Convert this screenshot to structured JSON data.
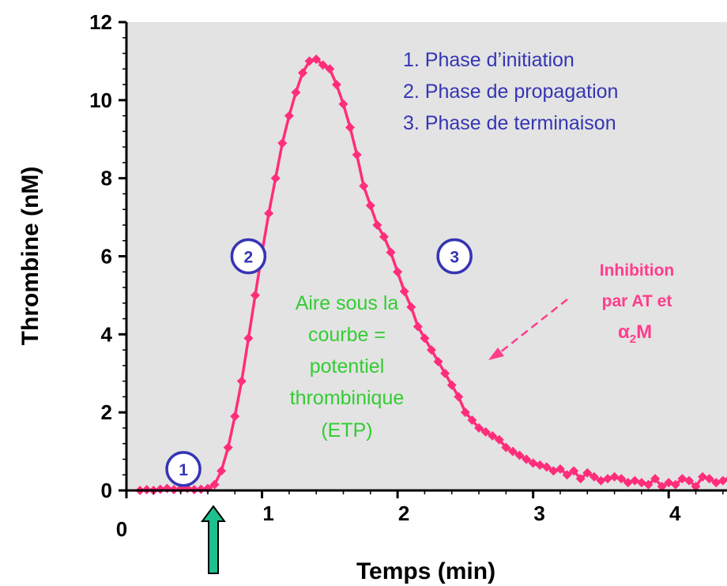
{
  "chart_data": {
    "type": "line",
    "xlabel": "Temps (min)",
    "ylabel": "Thrombine (nM)",
    "xlim": [
      0,
      4.5
    ],
    "ylim": [
      0,
      12
    ],
    "x_ticks": [
      0,
      1,
      2,
      3,
      4
    ],
    "y_ticks": [
      0,
      2,
      4,
      6,
      8,
      10,
      12
    ],
    "grid": false,
    "background": "#e3e3e3",
    "series": [
      {
        "color": "#ff2d7a",
        "marker": "diamond",
        "x": [
          0.1,
          0.15,
          0.2,
          0.25,
          0.3,
          0.35,
          0.4,
          0.45,
          0.5,
          0.55,
          0.6,
          0.65,
          0.7,
          0.75,
          0.8,
          0.85,
          0.9,
          0.95,
          1.0,
          1.05,
          1.1,
          1.15,
          1.2,
          1.25,
          1.3,
          1.35,
          1.4,
          1.45,
          1.5,
          1.55,
          1.6,
          1.65,
          1.7,
          1.75,
          1.8,
          1.85,
          1.9,
          1.95,
          2.0,
          2.05,
          2.1,
          2.15,
          2.2,
          2.25,
          2.3,
          2.35,
          2.4,
          2.45,
          2.5,
          2.55,
          2.6,
          2.65,
          2.7,
          2.75,
          2.8,
          2.85,
          2.9,
          2.95,
          3.0,
          3.05,
          3.1,
          3.15,
          3.2,
          3.25,
          3.3,
          3.35,
          3.4,
          3.45,
          3.5,
          3.55,
          3.6,
          3.65,
          3.7,
          3.75,
          3.8,
          3.85,
          3.9,
          3.95,
          4.0,
          4.05,
          4.1,
          4.15,
          4.2,
          4.25,
          4.3,
          4.35,
          4.4,
          4.45,
          4.5
        ],
        "values": [
          0.0,
          0.02,
          0.0,
          0.03,
          0.05,
          0.02,
          0.04,
          0.05,
          0.02,
          0.03,
          0.05,
          0.15,
          0.5,
          1.1,
          1.9,
          2.8,
          3.9,
          5.0,
          6.1,
          7.1,
          8.0,
          8.9,
          9.6,
          10.2,
          10.7,
          11.0,
          11.05,
          10.9,
          10.8,
          10.4,
          9.9,
          9.3,
          8.6,
          7.8,
          7.3,
          6.8,
          6.5,
          6.1,
          5.6,
          5.1,
          4.7,
          4.2,
          3.9,
          3.6,
          3.3,
          3.0,
          2.7,
          2.4,
          2.0,
          1.8,
          1.6,
          1.5,
          1.4,
          1.3,
          1.1,
          1.0,
          0.9,
          0.8,
          0.7,
          0.65,
          0.6,
          0.5,
          0.55,
          0.4,
          0.5,
          0.3,
          0.45,
          0.35,
          0.25,
          0.3,
          0.35,
          0.3,
          0.2,
          0.25,
          0.2,
          0.15,
          0.3,
          0.1,
          0.2,
          0.15,
          0.3,
          0.25,
          0.1,
          0.35,
          0.3,
          0.2,
          0.25,
          0.3,
          0.3
        ]
      }
    ],
    "legend_lines": [
      "1. Phase d’initiation",
      "2. Phase de propagation",
      "3. Phase de terminaison"
    ],
    "phase_markers": [
      {
        "label": "1",
        "x": 0.42,
        "y": 0.55
      },
      {
        "label": "2",
        "x": 0.9,
        "y": 6.0
      },
      {
        "label": "3",
        "x": 2.42,
        "y": 6.0
      }
    ],
    "area_label": [
      "Aire sous la",
      "courbe =",
      "potentiel",
      "thrombinique",
      "(ETP)"
    ],
    "inhibition_label": {
      "line1": "Inhibition",
      "line2": "par AT et",
      "alpha": "α",
      "sub": "2",
      "tail": "M"
    },
    "colors": {
      "curve": "#ff2d7a",
      "legend": "#3535b5",
      "area_text": "#33cc33",
      "inhibition": "#ff3d8b",
      "arrow": "#1fbf8f"
    }
  }
}
